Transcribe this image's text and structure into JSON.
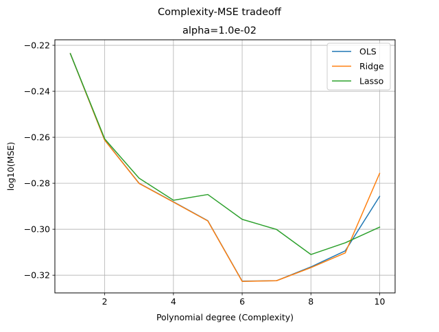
{
  "chart_data": {
    "type": "line",
    "suptitle": "Complexity-MSE tradeoff",
    "title": "alpha=1.0e-02",
    "xlabel": "Polynomial degree (Complexity)",
    "ylabel": "log10(MSE)",
    "xlim": [
      0.55,
      10.45
    ],
    "ylim": [
      -0.3277,
      -0.2176
    ],
    "xticks": [
      2,
      4,
      6,
      8,
      10
    ],
    "xtick_labels": [
      "2",
      "4",
      "6",
      "8",
      "10"
    ],
    "yticks": [
      -0.32,
      -0.3,
      -0.28,
      -0.26,
      -0.24,
      -0.22
    ],
    "ytick_labels": [
      "−0.32",
      "−0.30",
      "−0.28",
      "−0.26",
      "−0.24",
      "−0.22"
    ],
    "grid": true,
    "legend_position": "top-right",
    "x": [
      1,
      2,
      3,
      4,
      5,
      6,
      7,
      8,
      9,
      10
    ],
    "series": [
      {
        "name": "OLS",
        "color": "#1f77b4",
        "values": [
          -0.2236,
          -0.2612,
          -0.28,
          -0.2881,
          -0.2963,
          -0.3226,
          -0.3224,
          -0.3164,
          -0.3094,
          -0.2857
        ]
      },
      {
        "name": "Ridge",
        "color": "#ff7f0e",
        "values": [
          -0.2236,
          -0.2613,
          -0.2801,
          -0.2882,
          -0.2964,
          -0.3227,
          -0.3224,
          -0.3167,
          -0.3103,
          -0.2757
        ]
      },
      {
        "name": "Lasso",
        "color": "#2ca02c",
        "values": [
          -0.2236,
          -0.2607,
          -0.2778,
          -0.2874,
          -0.2849,
          -0.2957,
          -0.3001,
          -0.311,
          -0.3059,
          -0.2991
        ]
      }
    ]
  }
}
